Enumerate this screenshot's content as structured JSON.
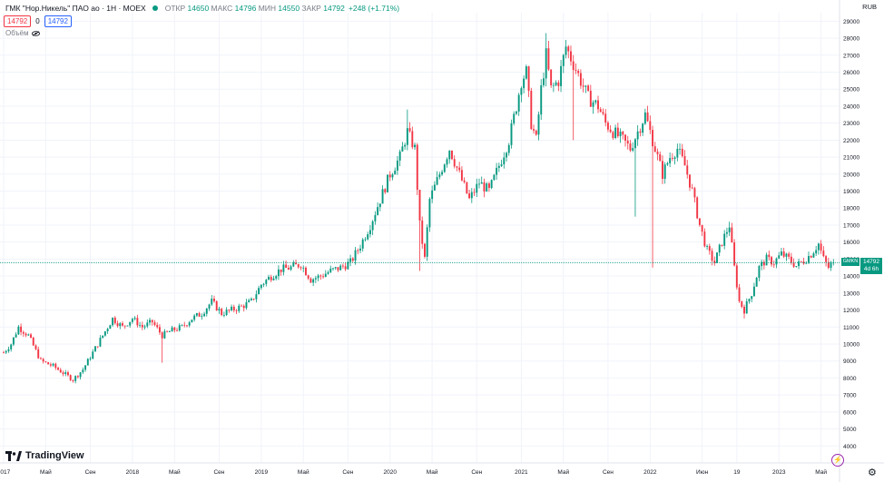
{
  "header": {
    "symbol": "ГМК \"Нор.Никель\" ПАО ао · 1Н · MOEX",
    "open_label": "ОТКР",
    "open": "14650",
    "high_label": "МАКС",
    "high": "14796",
    "low_label": "МИН",
    "low": "14550",
    "close_label": "ЗАКР",
    "close": "14792",
    "change": "+248 (+1.71%)"
  },
  "trade": {
    "sell_price": "14792",
    "spread": "0",
    "buy_price": "14792"
  },
  "volume_label": "Объём",
  "currency": "RUB",
  "last_price": {
    "ticker": "GMKN",
    "value": "14792",
    "countdown": "4d 6h"
  },
  "brand": "TradingView",
  "colors": {
    "up": "#089981",
    "down": "#f23645",
    "grid": "#f0f3fa",
    "axis_text": "#131722",
    "price_line": "#089981"
  },
  "chart_data": {
    "type": "candlestick",
    "title": "ГМК \"Нор.Никель\" ПАО ао · 1Н · MOEX",
    "ylim": [
      3000,
      29500
    ],
    "y_ticks": [
      4000,
      5000,
      6000,
      7000,
      8000,
      9000,
      10000,
      11000,
      12000,
      13000,
      14000,
      15000,
      16000,
      17000,
      18000,
      19000,
      20000,
      21000,
      22000,
      23000,
      24000,
      25000,
      26000,
      27000,
      28000,
      29000
    ],
    "x_ticks": [
      {
        "label": "2017",
        "t": 0
      },
      {
        "label": "Май",
        "t": 17
      },
      {
        "label": "Сен",
        "t": 35
      },
      {
        "label": "2018",
        "t": 52
      },
      {
        "label": "Май",
        "t": 69
      },
      {
        "label": "Сен",
        "t": 87
      },
      {
        "label": "2019",
        "t": 104
      },
      {
        "label": "Май",
        "t": 121
      },
      {
        "label": "Сен",
        "t": 139
      },
      {
        "label": "2020",
        "t": 156
      },
      {
        "label": "Май",
        "t": 173
      },
      {
        "label": "Сен",
        "t": 191
      },
      {
        "label": "2021",
        "t": 209
      },
      {
        "label": "Май",
        "t": 226
      },
      {
        "label": "Сен",
        "t": 244
      },
      {
        "label": "2022",
        "t": 261
      },
      {
        "label": "Июн",
        "t": 282
      },
      {
        "label": "19",
        "t": 296
      },
      {
        "label": "2023",
        "t": 313
      },
      {
        "label": "Май",
        "t": 330
      }
    ],
    "price_path": [
      [
        0,
        9500
      ],
      [
        3,
        10000
      ],
      [
        6,
        11000
      ],
      [
        10,
        10500
      ],
      [
        15,
        9000
      ],
      [
        20,
        8700
      ],
      [
        25,
        8200
      ],
      [
        28,
        7900
      ],
      [
        32,
        8500
      ],
      [
        36,
        9500
      ],
      [
        40,
        10500
      ],
      [
        44,
        11500
      ],
      [
        48,
        11000
      ],
      [
        52,
        11500
      ],
      [
        56,
        11000
      ],
      [
        60,
        11300
      ],
      [
        64,
        10500
      ],
      [
        68,
        10800
      ],
      [
        72,
        11000
      ],
      [
        76,
        11500
      ],
      [
        80,
        11800
      ],
      [
        84,
        12500
      ],
      [
        88,
        11800
      ],
      [
        92,
        12000
      ],
      [
        96,
        12200
      ],
      [
        100,
        12500
      ],
      [
        104,
        13500
      ],
      [
        108,
        14000
      ],
      [
        112,
        14400
      ],
      [
        116,
        14500
      ],
      [
        120,
        14700
      ],
      [
        124,
        13800
      ],
      [
        128,
        14000
      ],
      [
        132,
        14300
      ],
      [
        136,
        14500
      ],
      [
        140,
        14800
      ],
      [
        144,
        15800
      ],
      [
        148,
        17000
      ],
      [
        152,
        18500
      ],
      [
        156,
        20000
      ],
      [
        160,
        21000
      ],
      [
        163,
        22500
      ],
      [
        166,
        21500
      ],
      [
        168,
        17000
      ],
      [
        170,
        15000
      ],
      [
        172,
        18500
      ],
      [
        176,
        20000
      ],
      [
        180,
        21500
      ],
      [
        184,
        20000
      ],
      [
        188,
        18500
      ],
      [
        192,
        19500
      ],
      [
        196,
        19000
      ],
      [
        200,
        20500
      ],
      [
        204,
        22000
      ],
      [
        207,
        24000
      ],
      [
        209,
        25500
      ],
      [
        211,
        26000
      ],
      [
        213,
        23000
      ],
      [
        215,
        22000
      ],
      [
        217,
        25000
      ],
      [
        219,
        27000
      ],
      [
        221,
        25000
      ],
      [
        224,
        25500
      ],
      [
        227,
        27500
      ],
      [
        230,
        26500
      ],
      [
        233,
        25500
      ],
      [
        236,
        24500
      ],
      [
        240,
        24000
      ],
      [
        243,
        23000
      ],
      [
        246,
        22500
      ],
      [
        250,
        22000
      ],
      [
        253,
        21500
      ],
      [
        256,
        22500
      ],
      [
        259,
        23500
      ],
      [
        262,
        22000
      ],
      [
        264,
        21000
      ],
      [
        266,
        20000
      ],
      [
        269,
        21000
      ],
      [
        272,
        21500
      ],
      [
        275,
        20500
      ],
      [
        278,
        19000
      ],
      [
        281,
        17000
      ],
      [
        284,
        15500
      ],
      [
        287,
        14800
      ],
      [
        290,
        16000
      ],
      [
        293,
        17000
      ],
      [
        295,
        14500
      ],
      [
        297,
        12500
      ],
      [
        299,
        12000
      ],
      [
        302,
        13000
      ],
      [
        305,
        14500
      ],
      [
        308,
        15000
      ],
      [
        311,
        14800
      ],
      [
        314,
        15300
      ],
      [
        317,
        15000
      ],
      [
        320,
        14600
      ],
      [
        323,
        14900
      ],
      [
        326,
        15300
      ],
      [
        329,
        15900
      ],
      [
        331,
        15000
      ],
      [
        333,
        14500
      ],
      [
        335,
        14792
      ]
    ],
    "spike_wicks": [
      {
        "t": 64,
        "low": 8900
      },
      {
        "t": 163,
        "high": 23800
      },
      {
        "t": 168,
        "low": 14300
      },
      {
        "t": 219,
        "high": 28300
      },
      {
        "t": 230,
        "low": 22000
      },
      {
        "t": 255,
        "low": 17500
      },
      {
        "t": 262,
        "low": 14500
      },
      {
        "t": 293,
        "high": 17200
      },
      {
        "t": 299,
        "low": 11500
      }
    ],
    "last_value": 14792
  }
}
